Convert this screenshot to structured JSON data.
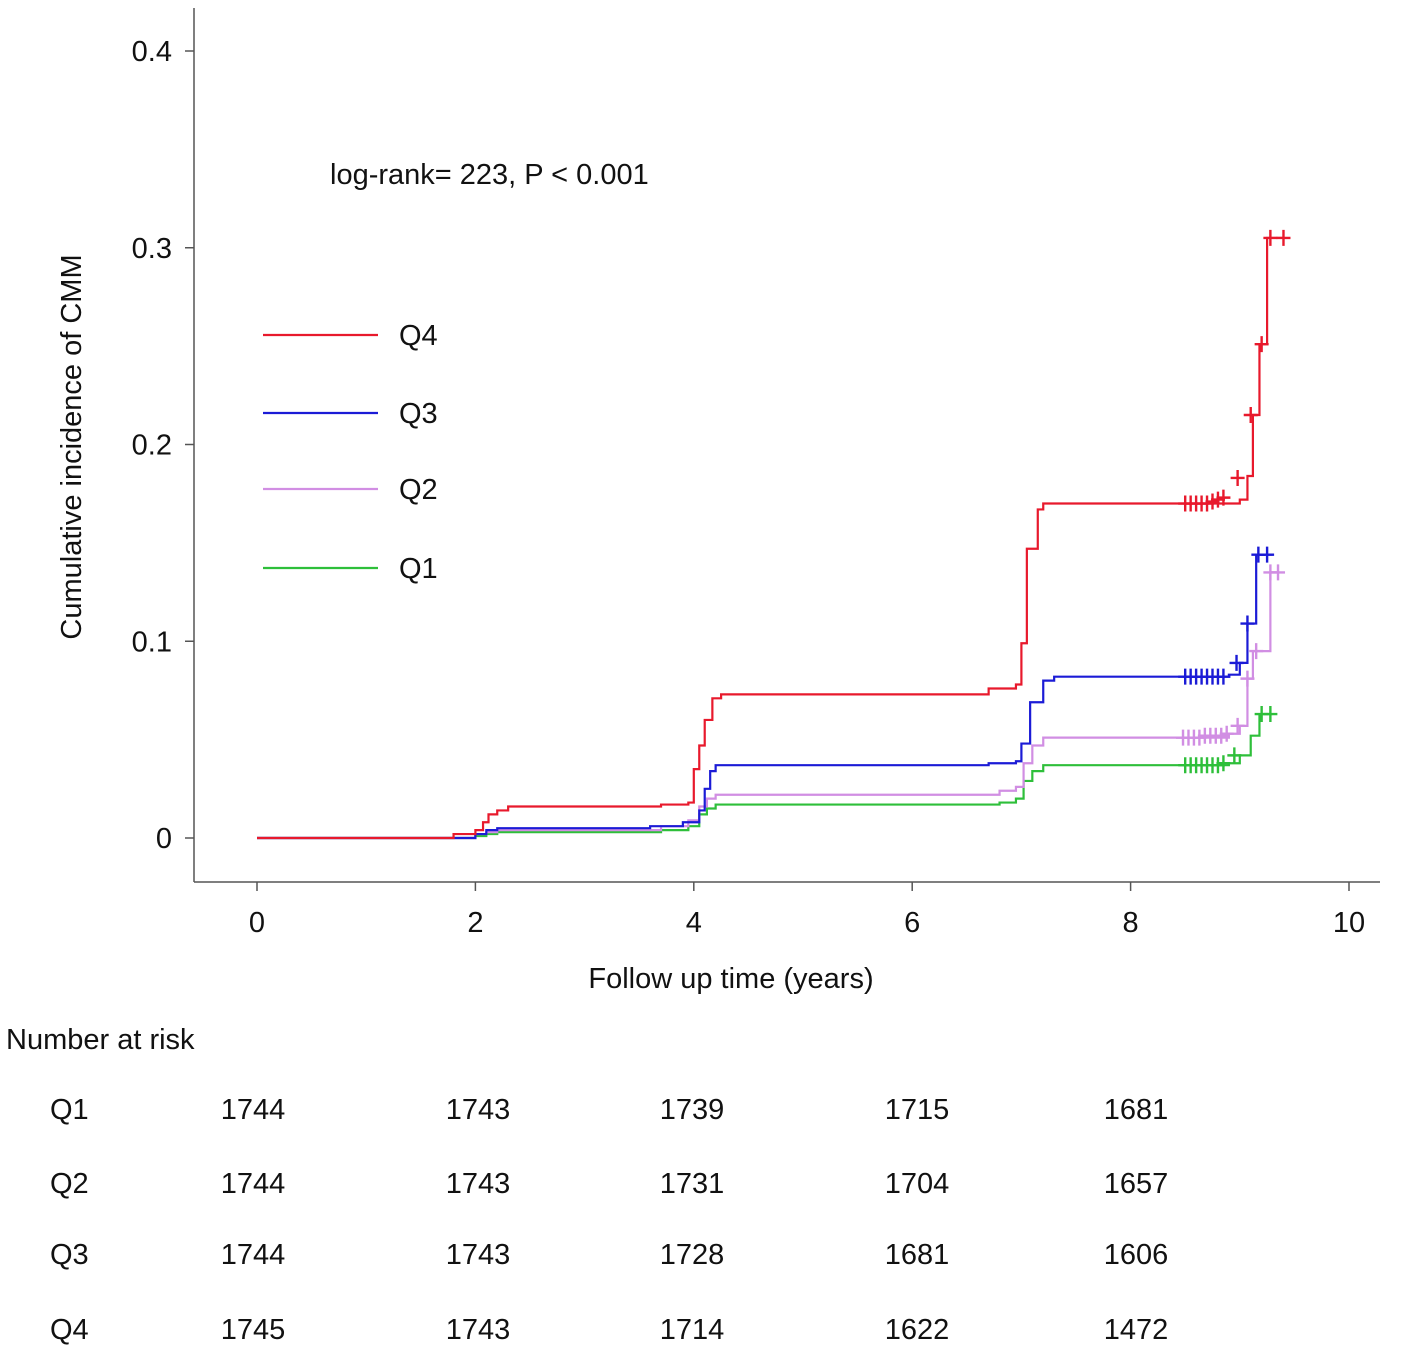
{
  "chart_data": {
    "type": "line",
    "subtype": "kaplan-meier-cumulative-incidence",
    "ylabel": "Cumulative incidence of CMM",
    "xlabel": "Follow up time (years)",
    "xlim": [
      0,
      10
    ],
    "ylim": [
      0,
      0.4
    ],
    "xticks": [
      "0",
      "2",
      "4",
      "6",
      "8",
      "10"
    ],
    "yticks": [
      "0",
      "0.1",
      "0.2",
      "0.3",
      "0.4"
    ],
    "annotation": "log-rank= 223, P < 0.001",
    "legend": [
      "Q4",
      "Q3",
      "Q2",
      "Q1"
    ],
    "legend_position": "upper-left",
    "series": [
      {
        "name": "Q4",
        "color": "#e8192c",
        "steps": [
          [
            0,
            0
          ],
          [
            1.8,
            0.002
          ],
          [
            2.0,
            0.004
          ],
          [
            2.07,
            0.008
          ],
          [
            2.12,
            0.012
          ],
          [
            2.2,
            0.014
          ],
          [
            2.3,
            0.016
          ],
          [
            3.7,
            0.017
          ],
          [
            3.95,
            0.018
          ],
          [
            4.0,
            0.035
          ],
          [
            4.05,
            0.047
          ],
          [
            4.1,
            0.06
          ],
          [
            4.17,
            0.071
          ],
          [
            4.25,
            0.073
          ],
          [
            6.7,
            0.076
          ],
          [
            6.95,
            0.078
          ],
          [
            7.0,
            0.099
          ],
          [
            7.05,
            0.147
          ],
          [
            7.15,
            0.167
          ],
          [
            7.2,
            0.17
          ],
          [
            9.0,
            0.172
          ],
          [
            9.07,
            0.184
          ],
          [
            9.12,
            0.215
          ],
          [
            9.18,
            0.251
          ],
          [
            9.25,
            0.305
          ],
          [
            9.4,
            0.305
          ]
        ],
        "censors": [
          [
            8.5,
            0.17
          ],
          [
            8.55,
            0.17
          ],
          [
            8.6,
            0.17
          ],
          [
            8.65,
            0.17
          ],
          [
            8.7,
            0.17
          ],
          [
            8.75,
            0.171
          ],
          [
            8.8,
            0.172
          ],
          [
            8.85,
            0.173
          ],
          [
            8.98,
            0.183
          ],
          [
            9.1,
            0.215
          ],
          [
            9.2,
            0.251
          ],
          [
            9.28,
            0.305
          ],
          [
            9.4,
            0.305
          ]
        ]
      },
      {
        "name": "Q3",
        "color": "#1b1bd6",
        "steps": [
          [
            0,
            0
          ],
          [
            2.0,
            0.002
          ],
          [
            2.1,
            0.004
          ],
          [
            2.2,
            0.005
          ],
          [
            3.6,
            0.006
          ],
          [
            3.9,
            0.008
          ],
          [
            4.05,
            0.014
          ],
          [
            4.1,
            0.025
          ],
          [
            4.15,
            0.034
          ],
          [
            4.2,
            0.037
          ],
          [
            6.7,
            0.038
          ],
          [
            6.95,
            0.039
          ],
          [
            7.0,
            0.048
          ],
          [
            7.08,
            0.069
          ],
          [
            7.2,
            0.08
          ],
          [
            7.3,
            0.082
          ],
          [
            8.9,
            0.083
          ],
          [
            9.0,
            0.089
          ],
          [
            9.07,
            0.109
          ],
          [
            9.15,
            0.144
          ],
          [
            9.3,
            0.144
          ]
        ],
        "censors": [
          [
            8.5,
            0.082
          ],
          [
            8.55,
            0.082
          ],
          [
            8.6,
            0.082
          ],
          [
            8.65,
            0.082
          ],
          [
            8.7,
            0.082
          ],
          [
            8.75,
            0.082
          ],
          [
            8.8,
            0.082
          ],
          [
            8.85,
            0.082
          ],
          [
            8.97,
            0.089
          ],
          [
            9.07,
            0.109
          ],
          [
            9.17,
            0.144
          ],
          [
            9.25,
            0.144
          ]
        ]
      },
      {
        "name": "Q2",
        "color": "#d18ee3",
        "steps": [
          [
            0,
            0
          ],
          [
            2.0,
            0.002
          ],
          [
            2.1,
            0.003
          ],
          [
            2.2,
            0.004
          ],
          [
            3.7,
            0.006
          ],
          [
            3.95,
            0.009
          ],
          [
            4.05,
            0.016
          ],
          [
            4.12,
            0.02
          ],
          [
            4.2,
            0.022
          ],
          [
            6.8,
            0.024
          ],
          [
            6.95,
            0.026
          ],
          [
            7.02,
            0.038
          ],
          [
            7.1,
            0.047
          ],
          [
            7.2,
            0.051
          ],
          [
            8.9,
            0.053
          ],
          [
            9.0,
            0.057
          ],
          [
            9.07,
            0.081
          ],
          [
            9.12,
            0.095
          ],
          [
            9.25,
            0.095
          ],
          [
            9.28,
            0.135
          ],
          [
            9.35,
            0.135
          ]
        ],
        "censors": [
          [
            8.48,
            0.051
          ],
          [
            8.53,
            0.051
          ],
          [
            8.58,
            0.051
          ],
          [
            8.63,
            0.051
          ],
          [
            8.68,
            0.052
          ],
          [
            8.73,
            0.052
          ],
          [
            8.78,
            0.052
          ],
          [
            8.83,
            0.052
          ],
          [
            8.88,
            0.053
          ],
          [
            8.98,
            0.057
          ],
          [
            9.07,
            0.081
          ],
          [
            9.15,
            0.095
          ],
          [
            9.28,
            0.135
          ],
          [
            9.35,
            0.135
          ]
        ]
      },
      {
        "name": "Q1",
        "color": "#2ebf3a",
        "steps": [
          [
            0,
            0
          ],
          [
            2.0,
            0.001
          ],
          [
            2.1,
            0.002
          ],
          [
            2.2,
            0.003
          ],
          [
            3.7,
            0.004
          ],
          [
            3.95,
            0.006
          ],
          [
            4.05,
            0.012
          ],
          [
            4.12,
            0.015
          ],
          [
            4.2,
            0.017
          ],
          [
            6.8,
            0.018
          ],
          [
            6.95,
            0.02
          ],
          [
            7.02,
            0.029
          ],
          [
            7.1,
            0.034
          ],
          [
            7.2,
            0.037
          ],
          [
            8.9,
            0.038
          ],
          [
            9.0,
            0.042
          ],
          [
            9.1,
            0.052
          ],
          [
            9.18,
            0.063
          ],
          [
            9.3,
            0.063
          ]
        ],
        "censors": [
          [
            8.5,
            0.037
          ],
          [
            8.55,
            0.037
          ],
          [
            8.6,
            0.037
          ],
          [
            8.65,
            0.037
          ],
          [
            8.7,
            0.037
          ],
          [
            8.75,
            0.037
          ],
          [
            8.8,
            0.037
          ],
          [
            8.85,
            0.038
          ],
          [
            8.95,
            0.042
          ],
          [
            9.2,
            0.063
          ],
          [
            9.28,
            0.063
          ]
        ]
      }
    ]
  },
  "risk_table": {
    "title": "Number at risk",
    "rows": [
      {
        "label": "Q1",
        "values": [
          "1744",
          "1743",
          "1739",
          "1715",
          "1681"
        ]
      },
      {
        "label": "Q2",
        "values": [
          "1744",
          "1743",
          "1731",
          "1704",
          "1657"
        ]
      },
      {
        "label": "Q3",
        "values": [
          "1744",
          "1743",
          "1728",
          "1681",
          "1606"
        ]
      },
      {
        "label": "Q4",
        "values": [
          "1745",
          "1743",
          "1714",
          "1622",
          "1472"
        ]
      }
    ]
  }
}
